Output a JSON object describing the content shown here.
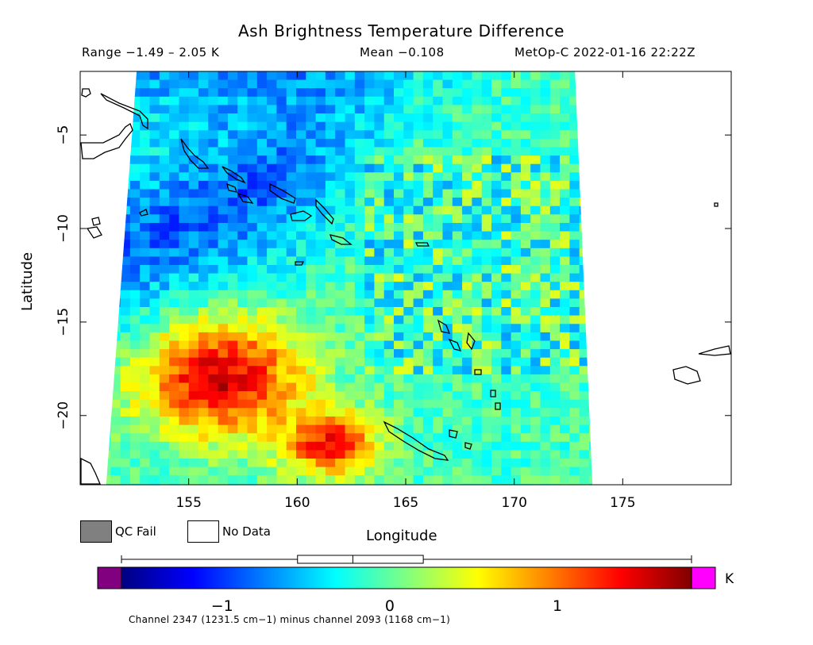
{
  "chart_data": {
    "type": "heatmap",
    "title": "Ash Brightness Temperature Difference",
    "range_text": "Range −1.49 – 2.05 K",
    "mean_text": "Mean −0.108",
    "satellite_text": "MetOp-C 2022-01-16 22:22Z",
    "xlabel": "Longitude",
    "ylabel": "Latitude",
    "xlim": [
      150,
      180
    ],
    "ylim": [
      -23.7,
      -1.6
    ],
    "x_ticks": [
      155,
      160,
      165,
      170,
      175
    ],
    "y_ticks": [
      -5,
      -10,
      -15,
      -20
    ],
    "x_tick_labels": [
      "155",
      "160",
      "165",
      "170",
      "175"
    ],
    "y_tick_labels": [
      "−5",
      "−10",
      "−15",
      "−20"
    ],
    "swath_corners": {
      "top_left": [
        152.6,
        -1.6
      ],
      "top_right": [
        172.8,
        -1.6
      ],
      "bottom_left": [
        151.2,
        -23.7
      ],
      "bottom_right": [
        173.6,
        -23.7
      ]
    },
    "regions": [
      {
        "name": "background",
        "value": -0.1
      },
      {
        "name": "northwest cold band",
        "value": -0.9
      },
      {
        "name": "southwest ash plume",
        "value": 1.5,
        "center": [
          156.5,
          -18.0
        ]
      },
      {
        "name": "southern ash plume",
        "value": 1.4,
        "center": [
          161.5,
          -21.5
        ]
      }
    ],
    "colorbar": {
      "min": -1.6,
      "max": 1.8,
      "ticks": [
        -1,
        0,
        1
      ],
      "tick_labels": [
        "−1",
        "0",
        "1"
      ],
      "unit": "K",
      "stops": [
        "#000080",
        "#0000ff",
        "#0080ff",
        "#00ffff",
        "#80ff80",
        "#ffff00",
        "#ff8000",
        "#ff0000",
        "#800000"
      ],
      "under_color": "#800080",
      "over_color": "#ff00ff"
    },
    "boxplot": {
      "whisker_low": -1.6,
      "q1": -0.55,
      "median": -0.22,
      "q3": 0.2,
      "whisker_high": 1.8
    }
  },
  "legend": {
    "qc_fail": "QC Fail",
    "no_data": "No Data",
    "qc_fail_color": "#808080"
  },
  "footnote": "Channel 2347 (1231.5 cm−1) minus channel 2093 (1168 cm−1)"
}
